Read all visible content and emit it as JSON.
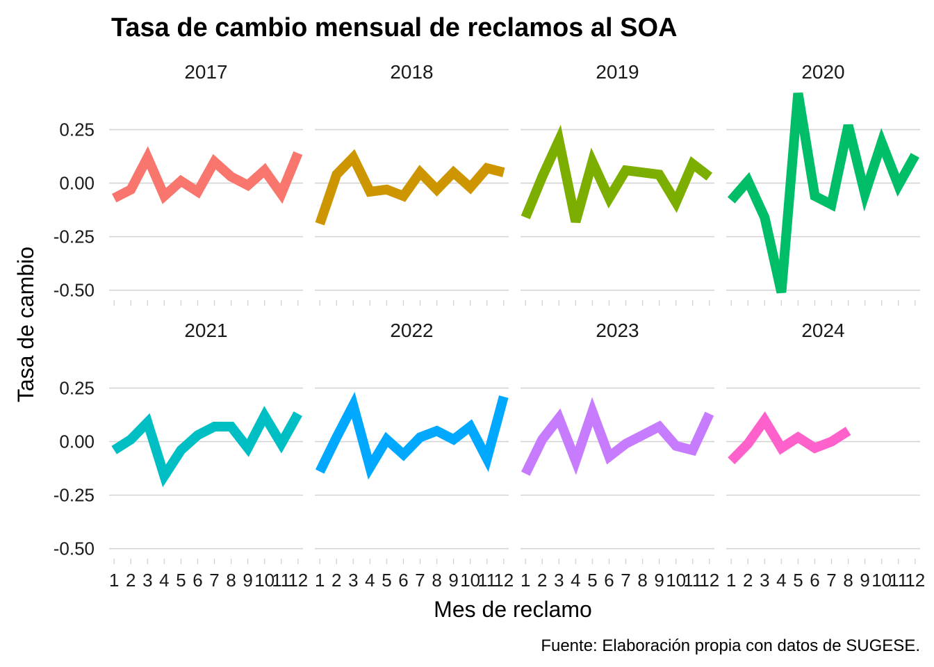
{
  "chart_data": {
    "type": "line",
    "title": "Tasa de cambio mensual de reclamos al SOA",
    "xlabel": "Mes de reclamo",
    "ylabel": "Tasa de cambio",
    "caption": "Fuente: Elaboración propia con datos de SUGESE.",
    "x_ticks": [
      "1",
      "2",
      "3",
      "4",
      "5",
      "6",
      "7",
      "8",
      "9",
      "10",
      "11",
      "12"
    ],
    "y_ticks": [
      {
        "value": 0.25,
        "label": "0.25"
      },
      {
        "value": 0.0,
        "label": "0.00"
      },
      {
        "value": -0.25,
        "label": "-0.25"
      },
      {
        "value": -0.5,
        "label": "-0.50"
      }
    ],
    "ylim": [
      -0.54,
      0.44
    ],
    "xlim": [
      0.7,
      12.3
    ],
    "grid": "horizontal",
    "legend": "none",
    "panels": [
      {
        "year": "2017",
        "color": "#F8766D",
        "x": [
          1,
          2,
          3,
          4,
          5,
          6,
          7,
          8,
          9,
          10,
          11,
          12
        ],
        "y": [
          -0.07,
          -0.03,
          0.12,
          -0.06,
          0.01,
          -0.04,
          0.1,
          0.03,
          -0.01,
          0.06,
          -0.05,
          0.14
        ]
      },
      {
        "year": "2018",
        "color": "#CD9600",
        "x": [
          1,
          2,
          3,
          4,
          5,
          6,
          7,
          8,
          9,
          10,
          11,
          12
        ],
        "y": [
          -0.19,
          0.04,
          0.12,
          -0.04,
          -0.03,
          -0.06,
          0.05,
          -0.03,
          0.05,
          -0.02,
          0.07,
          0.05
        ]
      },
      {
        "year": "2019",
        "color": "#7CAE00",
        "x": [
          1,
          2,
          3,
          4,
          5,
          6,
          7,
          8,
          9,
          10,
          11,
          12
        ],
        "y": [
          -0.16,
          0.03,
          0.2,
          -0.18,
          0.1,
          -0.07,
          0.06,
          0.05,
          0.04,
          -0.09,
          0.09,
          0.03
        ]
      },
      {
        "year": "2020",
        "color": "#00BE67",
        "x": [
          1,
          2,
          3,
          4,
          5,
          6,
          7,
          8,
          9,
          10,
          11,
          12
        ],
        "y": [
          -0.08,
          0.01,
          -0.16,
          -0.51,
          0.42,
          -0.06,
          -0.1,
          0.27,
          -0.05,
          0.19,
          -0.01,
          0.13
        ]
      },
      {
        "year": "2021",
        "color": "#00BFC4",
        "x": [
          1,
          2,
          3,
          4,
          5,
          6,
          7,
          8,
          9,
          10,
          11,
          12
        ],
        "y": [
          -0.04,
          0.01,
          0.09,
          -0.16,
          -0.04,
          0.03,
          0.07,
          0.07,
          -0.03,
          0.12,
          -0.01,
          0.13
        ]
      },
      {
        "year": "2022",
        "color": "#00A9FF",
        "x": [
          1,
          2,
          3,
          4,
          5,
          6,
          7,
          8,
          9,
          10,
          11,
          12
        ],
        "y": [
          -0.14,
          0.02,
          0.17,
          -0.12,
          0.01,
          -0.06,
          0.02,
          0.05,
          0.01,
          0.07,
          -0.08,
          0.21
        ]
      },
      {
        "year": "2023",
        "color": "#C77CFF",
        "x": [
          1,
          2,
          3,
          4,
          5,
          6,
          7,
          8,
          9,
          10,
          11,
          12
        ],
        "y": [
          -0.15,
          0.01,
          0.11,
          -0.09,
          0.14,
          -0.07,
          -0.01,
          0.03,
          0.07,
          -0.02,
          -0.04,
          0.13
        ]
      },
      {
        "year": "2024",
        "color": "#FF61CC",
        "x": [
          1,
          2,
          3,
          4,
          5,
          6,
          7,
          8
        ],
        "y": [
          -0.09,
          -0.01,
          0.1,
          -0.03,
          0.02,
          -0.03,
          0.0,
          0.05
        ]
      }
    ]
  }
}
